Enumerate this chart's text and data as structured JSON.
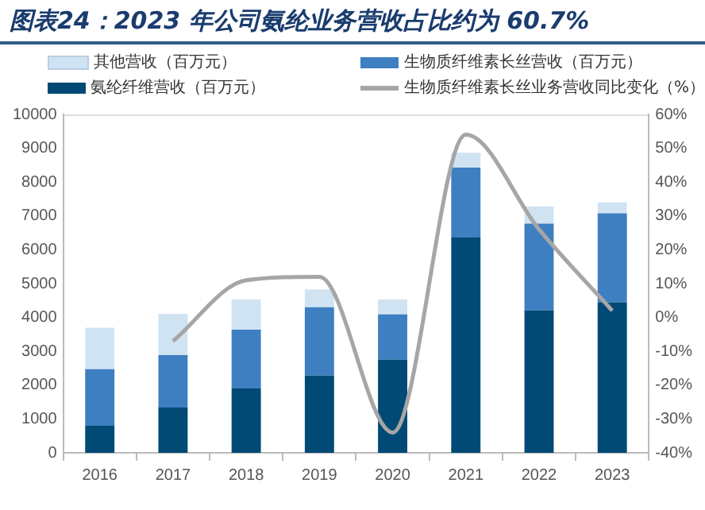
{
  "chart_data": {
    "type": "bar",
    "title": "图表24：2023 年公司氨纶业务营收占比约为 60.7%",
    "categories": [
      "2016",
      "2017",
      "2018",
      "2019",
      "2020",
      "2021",
      "2022",
      "2023"
    ],
    "stacked": true,
    "series": [
      {
        "name": "氨纶纤维营收（百万元）",
        "color": "#004a75",
        "values": [
          800,
          1340,
          1900,
          2280,
          2750,
          6360,
          4210,
          4450
        ]
      },
      {
        "name": "生物质纤维素长丝营收（百万元）",
        "color": "#3e7fc1",
        "values": [
          1670,
          1550,
          1740,
          2020,
          1340,
          2070,
          2560,
          2630
        ]
      },
      {
        "name": "其他营收（百万元）",
        "color": "#d0e3f3",
        "values": [
          1230,
          1220,
          890,
          530,
          440,
          440,
          510,
          320
        ]
      },
      {
        "name": "生物质纤维素长丝业务营收同比变化（%）",
        "type": "line",
        "axis": "y2",
        "color": "#a6a6a6",
        "values": [
          null,
          -7,
          11,
          12,
          -34,
          54,
          26,
          2
        ]
      }
    ],
    "ylim": [
      0,
      10000
    ],
    "yticks": [
      0,
      1000,
      2000,
      3000,
      4000,
      5000,
      6000,
      7000,
      8000,
      9000,
      10000
    ],
    "y2lim": [
      -40,
      60
    ],
    "y2ticks": [
      {
        "value": -40,
        "label": "-40%"
      },
      {
        "value": -30,
        "label": "-30%"
      },
      {
        "value": -20,
        "label": "-20%"
      },
      {
        "value": -10,
        "label": "-10%"
      },
      {
        "value": 0,
        "label": "0%"
      },
      {
        "value": 10,
        "label": "10%"
      },
      {
        "value": 20,
        "label": "20%"
      },
      {
        "value": 30,
        "label": "30%"
      },
      {
        "value": 40,
        "label": "40%"
      },
      {
        "value": 50,
        "label": "50%"
      },
      {
        "value": 60,
        "label": "60%"
      }
    ],
    "grid": false,
    "legend": "top",
    "marker": "none"
  }
}
